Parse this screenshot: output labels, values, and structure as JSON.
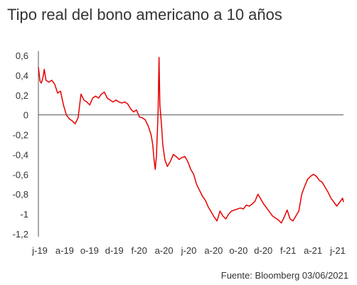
{
  "chart_data": {
    "type": "line",
    "title": "Tipo real del bono americano a 10 años",
    "source": "Fuente: Bloomberg 03/06/2021",
    "xlabel": "",
    "ylabel": "",
    "ylim": [
      -1.2,
      0.6
    ],
    "grid": false,
    "line_color": "#e60000",
    "y_ticks": [
      "0,6",
      "0,4",
      "0,2",
      "0",
      "-0,2",
      "-0,4",
      "-0,6",
      "-0,8",
      "-1",
      "-1,2"
    ],
    "y_tick_values": [
      0.6,
      0.4,
      0.2,
      0,
      -0.2,
      -0.4,
      -0.6,
      -0.8,
      -1,
      -1.2
    ],
    "x_ticks": [
      "j-19",
      "a-19",
      "o-19",
      "d-19",
      "f-20",
      "a-20",
      "j-20",
      "a-20",
      "o-20",
      "d-20",
      "f-21",
      "a-21",
      "j-21"
    ],
    "series": [
      {
        "x": [
          "2019-06-03",
          "2019-06-07",
          "2019-06-10",
          "2019-06-14",
          "2019-06-17",
          "2019-06-21",
          "2019-06-28",
          "2019-07-05",
          "2019-07-12",
          "2019-07-19",
          "2019-07-26",
          "2019-08-02",
          "2019-08-09",
          "2019-08-16",
          "2019-08-23",
          "2019-08-30",
          "2019-09-06",
          "2019-09-13",
          "2019-09-20",
          "2019-09-27",
          "2019-10-04",
          "2019-10-11",
          "2019-10-18",
          "2019-10-25",
          "2019-11-01",
          "2019-11-08",
          "2019-11-15",
          "2019-11-22",
          "2019-11-29",
          "2019-12-06",
          "2019-12-13",
          "2019-12-20",
          "2019-12-27",
          "2020-01-03",
          "2020-01-10",
          "2020-01-17",
          "2020-01-24",
          "2020-01-31",
          "2020-02-07",
          "2020-02-14",
          "2020-02-21",
          "2020-02-28",
          "2020-03-03",
          "2020-03-06",
          "2020-03-09",
          "2020-03-12",
          "2020-03-16",
          "2020-03-18",
          "2020-03-19",
          "2020-03-20",
          "2020-03-24",
          "2020-03-27",
          "2020-04-01",
          "2020-04-07",
          "2020-04-14",
          "2020-04-21",
          "2020-04-28",
          "2020-05-05",
          "2020-05-12",
          "2020-05-19",
          "2020-05-26",
          "2020-06-02",
          "2020-06-09",
          "2020-06-16",
          "2020-06-23",
          "2020-06-30",
          "2020-07-07",
          "2020-07-14",
          "2020-07-21",
          "2020-07-28",
          "2020-08-04",
          "2020-08-11",
          "2020-08-18",
          "2020-08-25",
          "2020-09-01",
          "2020-09-08",
          "2020-09-15",
          "2020-09-22",
          "2020-09-29",
          "2020-10-06",
          "2020-10-13",
          "2020-10-20",
          "2020-10-27",
          "2020-11-03",
          "2020-11-10",
          "2020-11-17",
          "2020-11-24",
          "2020-12-01",
          "2020-12-08",
          "2020-12-15",
          "2020-12-22",
          "2020-12-29",
          "2021-01-05",
          "2021-01-12",
          "2021-01-19",
          "2021-01-26",
          "2021-02-02",
          "2021-02-09",
          "2021-02-16",
          "2021-02-23",
          "2021-03-02",
          "2021-03-09",
          "2021-03-16",
          "2021-03-23",
          "2021-03-30",
          "2021-04-06",
          "2021-04-13",
          "2021-04-20",
          "2021-04-27",
          "2021-05-04",
          "2021-05-11",
          "2021-05-18",
          "2021-05-25",
          "2021-06-01",
          "2021-06-03"
        ],
        "values": [
          0.48,
          0.34,
          0.32,
          0.38,
          0.46,
          0.35,
          0.33,
          0.35,
          0.31,
          0.22,
          0.24,
          0.1,
          0.0,
          -0.04,
          -0.06,
          -0.09,
          -0.03,
          0.21,
          0.15,
          0.13,
          0.1,
          0.17,
          0.19,
          0.17,
          0.21,
          0.23,
          0.17,
          0.15,
          0.13,
          0.15,
          0.13,
          0.12,
          0.13,
          0.11,
          0.06,
          0.03,
          0.05,
          -0.02,
          -0.03,
          -0.05,
          -0.11,
          -0.2,
          -0.3,
          -0.45,
          -0.55,
          -0.4,
          0.05,
          0.58,
          0.35,
          0.1,
          -0.1,
          -0.3,
          -0.45,
          -0.52,
          -0.47,
          -0.4,
          -0.42,
          -0.45,
          -0.43,
          -0.42,
          -0.47,
          -0.55,
          -0.6,
          -0.7,
          -0.76,
          -0.82,
          -0.86,
          -0.93,
          -0.98,
          -1.03,
          -1.07,
          -0.97,
          -1.02,
          -1.05,
          -1.0,
          -0.97,
          -0.96,
          -0.95,
          -0.94,
          -0.95,
          -0.91,
          -0.92,
          -0.9,
          -0.87,
          -0.8,
          -0.85,
          -0.9,
          -0.94,
          -0.98,
          -1.02,
          -1.04,
          -1.06,
          -1.09,
          -1.03,
          -0.96,
          -1.05,
          -1.07,
          -1.02,
          -0.97,
          -0.8,
          -0.72,
          -0.65,
          -0.62,
          -0.6,
          -0.62,
          -0.66,
          -0.68,
          -0.73,
          -0.78,
          -0.84,
          -0.88,
          -0.92,
          -0.88,
          -0.84,
          -0.88
        ],
        "color": "#e60000"
      }
    ]
  }
}
